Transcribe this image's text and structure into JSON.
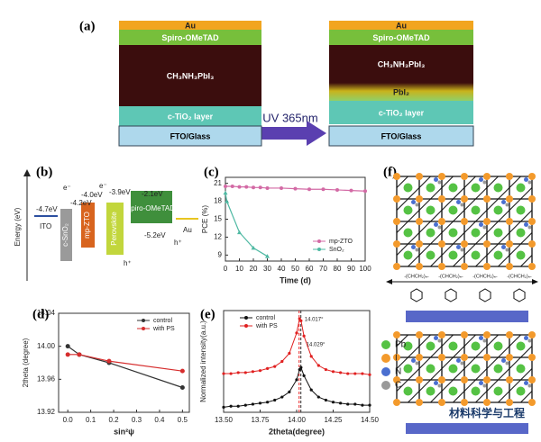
{
  "panel_labels": [
    "(a)",
    "(b)",
    "(c)",
    "(d)",
    "(e)",
    "(f)"
  ],
  "device_before": {
    "layers": [
      "Au",
      "Spiro-OMeTAD",
      "CH₃NH₃PbI₃",
      "c-TiO₂ layer",
      "FTO/Glass"
    ]
  },
  "device_after": {
    "layers": [
      "Au",
      "Spiro-OMeTAD",
      "CH₃NH₃PbI₃",
      "PbI₂",
      "c-TiO₂ layer",
      "FTO/Glass"
    ]
  },
  "uv_label": "UV 365nm",
  "energy_diagram": {
    "y_label": "Energy (eV)",
    "labels": [
      "-4.7eV",
      "ITO",
      "c-SnO₂",
      "-4.2eV",
      "e⁻",
      "-4.0eV",
      "mp-ZTO",
      "e⁻",
      "-3.9eV",
      "Perovskite",
      "-2.1eV",
      "Spiro-OMeTAD",
      "-5.2eV",
      "Au",
      "h⁺",
      "h⁺"
    ]
  },
  "schematic": {
    "chain_labels": [
      "-(CHCH₂)ₙ-",
      "-(CHCH₂)ₙ-",
      "-(CHCH₂)ₙ-",
      "-(CHCH₂)ₙ-"
    ],
    "legend": [
      "Pb",
      "I",
      "N",
      "C"
    ],
    "watermark": "材料科学与工程"
  },
  "chart_data": [
    {
      "type": "line",
      "x_label": "Time (d)",
      "y_label": "PCE (%)",
      "xlim": [
        0,
        100
      ],
      "xticks": [
        0,
        10,
        20,
        30,
        40,
        50,
        60,
        70,
        80,
        90,
        100
      ],
      "ylim": [
        8,
        22
      ],
      "yticks": [
        9,
        12,
        15,
        18,
        21
      ],
      "legend": "lower right",
      "series": [
        {
          "name": "mp-ZTO",
          "color": "#d36aa5",
          "x": [
            0,
            5,
            10,
            15,
            20,
            25,
            30,
            40,
            50,
            60,
            70,
            80,
            90,
            100
          ],
          "values": [
            20.5,
            20.5,
            20.4,
            20.4,
            20.3,
            20.3,
            20.2,
            20.2,
            20.1,
            20.0,
            20.0,
            19.9,
            19.8,
            19.7
          ]
        },
        {
          "name": "SnO₂",
          "color": "#4fb9a3",
          "x": [
            0,
            1,
            10,
            20,
            30
          ],
          "values": [
            19.4,
            18.0,
            12.8,
            10.2,
            8.8
          ]
        }
      ]
    },
    {
      "type": "line",
      "x_label": "sin²ψ",
      "y_label": "2theta (degree)",
      "xlim": [
        -0.04,
        0.53
      ],
      "xticks": [
        {
          "value": 0,
          "label": "0.0"
        },
        0.1,
        0.2,
        0.3,
        0.4,
        0.5
      ],
      "ylim": [
        13.92,
        14.04
      ],
      "yticks": [
        13.92,
        13.96,
        {
          "value": 14,
          "label": "14.00"
        },
        14.04
      ],
      "legend": "upper right",
      "series": [
        {
          "name": "control",
          "color": "#333333",
          "x": [
            0,
            0.05,
            0.18,
            0.5
          ],
          "values": [
            14.0,
            13.99,
            13.98,
            13.95
          ]
        },
        {
          "name": "with PS",
          "color": "#d62d2d",
          "x": [
            0,
            0.05,
            0.18,
            0.5
          ],
          "values": [
            13.99,
            13.99,
            13.982,
            13.97
          ]
        }
      ]
    },
    {
      "type": "line",
      "x_label": "2theta(degree)",
      "y_label": "Normalized intensity(a.u.)",
      "xlim": [
        13.5,
        14.5
      ],
      "xticks": [
        {
          "value": 13.5,
          "label": "13.50"
        },
        13.75,
        {
          "value": 14,
          "label": "14.00"
        },
        14.25,
        {
          "value": 14.5,
          "label": "14.50"
        }
      ],
      "ylim": [
        0,
        1
      ],
      "legend": "upper left",
      "annotations": [
        {
          "value": 14.017,
          "label": "14.017°"
        },
        {
          "value": 14.029,
          "label": "14.029°"
        }
      ],
      "series": [
        {
          "name": "control",
          "color": "#111111",
          "x": [
            13.5,
            13.55,
            13.6,
            13.65,
            13.7,
            13.75,
            13.8,
            13.85,
            13.9,
            13.95,
            14.0,
            14.02,
            14.03,
            14.05,
            14.1,
            14.15,
            14.2,
            14.25,
            14.3,
            14.35,
            14.4,
            14.45,
            14.5
          ],
          "values": [
            0.05,
            0.06,
            0.06,
            0.07,
            0.08,
            0.09,
            0.1,
            0.12,
            0.15,
            0.2,
            0.32,
            0.42,
            0.44,
            0.36,
            0.22,
            0.15,
            0.12,
            0.1,
            0.09,
            0.08,
            0.08,
            0.07,
            0.07
          ]
        },
        {
          "name": "with PS",
          "color": "#e02020",
          "x": [
            13.5,
            13.55,
            13.6,
            13.65,
            13.7,
            13.75,
            13.8,
            13.85,
            13.9,
            13.95,
            14.0,
            14.02,
            14.03,
            14.05,
            14.1,
            14.15,
            14.2,
            14.25,
            14.3,
            14.35,
            14.4,
            14.45,
            14.5
          ],
          "values": [
            0.38,
            0.38,
            0.39,
            0.39,
            0.4,
            0.41,
            0.43,
            0.45,
            0.5,
            0.58,
            0.78,
            0.92,
            0.9,
            0.75,
            0.55,
            0.46,
            0.42,
            0.4,
            0.39,
            0.38,
            0.38,
            0.38,
            0.37
          ]
        }
      ]
    }
  ]
}
